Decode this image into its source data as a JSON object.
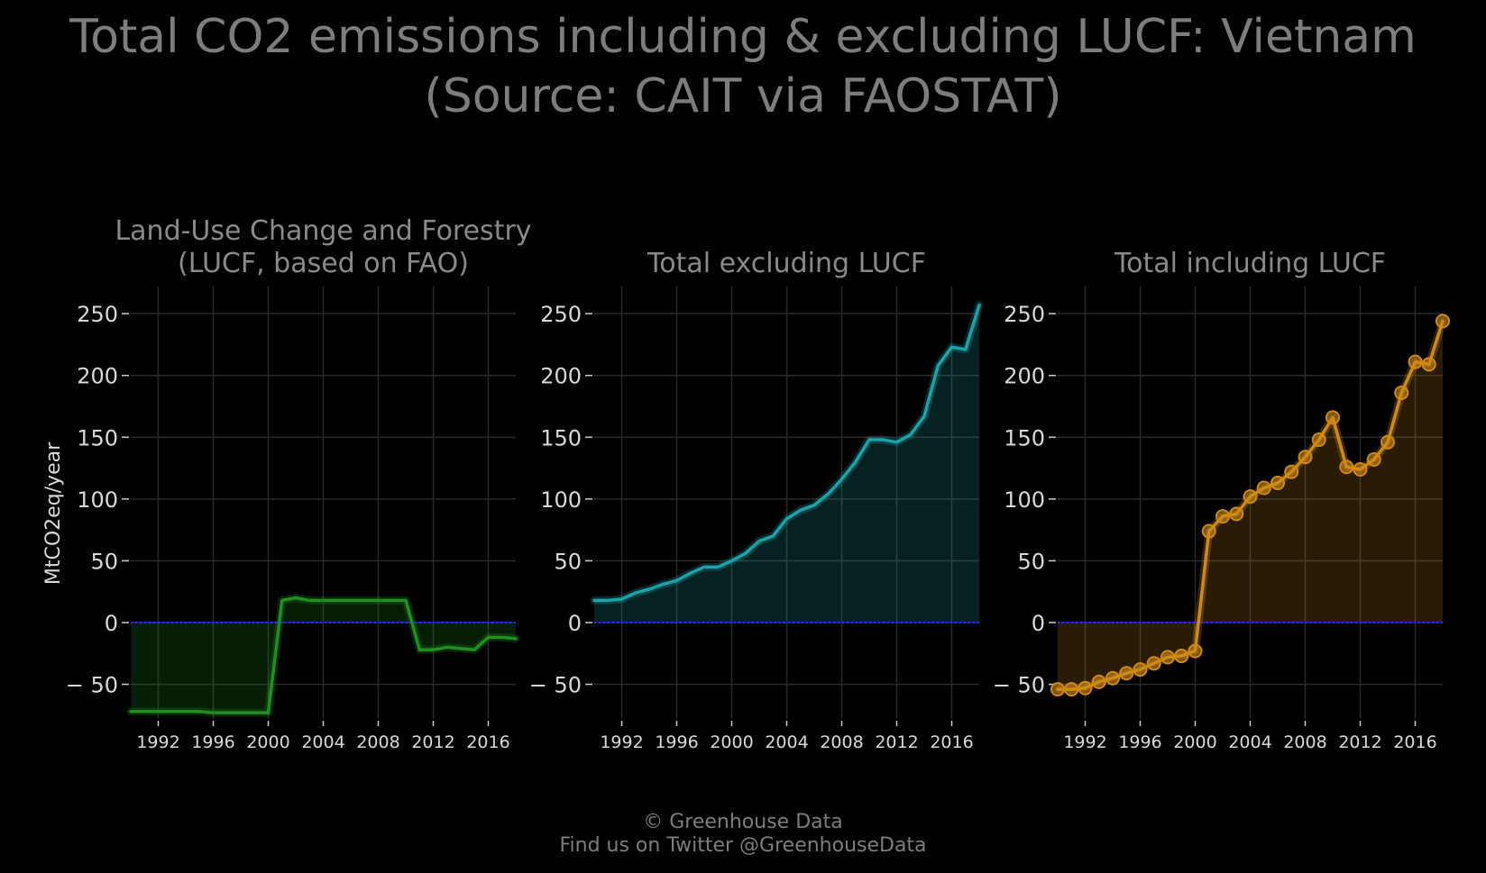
{
  "title": {
    "line1": "Total CO2 emissions including & excluding LUCF: Vietnam",
    "line2": "(Source: CAIT via FAOSTAT)"
  },
  "footer": {
    "line1": "© Greenhouse Data",
    "line2": "Find us on Twitter @GreenhouseData"
  },
  "colors": {
    "background": "#000000",
    "grid": "#2a2a2a",
    "zero_line": "#1a1aa8",
    "text": "#8a8a8a",
    "lucf": "#1f8f1f",
    "excl": "#1aa3a8",
    "incl": "#d08a14"
  },
  "chart_data": [
    {
      "type": "area",
      "title_lines": [
        "Land-Use Change and Forestry",
        "(LUCF, based on FAO)"
      ],
      "ylabel": "MtCO2eq/year",
      "xlim": [
        1990,
        2018
      ],
      "ylim": [
        -78,
        272
      ],
      "xticks": [
        1992,
        1996,
        2000,
        2004,
        2008,
        2012,
        2016
      ],
      "yticks": [
        -50,
        0,
        50,
        100,
        150,
        200,
        250
      ],
      "ytick_labels": [
        "− 50",
        "0",
        "50",
        "100",
        "150",
        "200",
        "250"
      ],
      "markers": false,
      "color_key": "lucf",
      "series": [
        {
          "x": [
            1990,
            1991,
            1992,
            1993,
            1994,
            1995,
            1996,
            1997,
            1998,
            1999,
            2000,
            2001,
            2002,
            2003,
            2004,
            2005,
            2006,
            2007,
            2008,
            2009,
            2010,
            2011,
            2012,
            2013,
            2014,
            2015,
            2016,
            2017,
            2018
          ],
          "values": [
            -72,
            -72,
            -72,
            -72,
            -72,
            -72,
            -73,
            -73,
            -73,
            -73,
            -73,
            18,
            20,
            18,
            18,
            18,
            18,
            18,
            18,
            18,
            18,
            -22,
            -22,
            -20,
            -21,
            -22,
            -12,
            -12,
            -13
          ]
        }
      ]
    },
    {
      "type": "area",
      "title_lines": [
        "Total excluding LUCF"
      ],
      "ylabel": "",
      "xlim": [
        1990,
        2018
      ],
      "ylim": [
        -78,
        272
      ],
      "xticks": [
        1992,
        1996,
        2000,
        2004,
        2008,
        2012,
        2016
      ],
      "yticks": [
        -50,
        0,
        50,
        100,
        150,
        200,
        250
      ],
      "ytick_labels": [
        "− 50",
        "0",
        "50",
        "100",
        "150",
        "200",
        "250"
      ],
      "markers": false,
      "color_key": "excl",
      "series": [
        {
          "x": [
            1990,
            1991,
            1992,
            1993,
            1994,
            1995,
            1996,
            1997,
            1998,
            1999,
            2000,
            2001,
            2002,
            2003,
            2004,
            2005,
            2006,
            2007,
            2008,
            2009,
            2010,
            2011,
            2012,
            2013,
            2014,
            2015,
            2016,
            2017,
            2018
          ],
          "values": [
            18,
            18,
            19,
            24,
            27,
            31,
            34,
            40,
            45,
            45,
            50,
            56,
            66,
            70,
            84,
            91,
            95,
            104,
            116,
            130,
            148,
            148,
            146,
            152,
            167,
            208,
            223,
            221,
            257
          ]
        }
      ]
    },
    {
      "type": "area",
      "title_lines": [
        "Total including LUCF"
      ],
      "ylabel": "",
      "xlim": [
        1990,
        2018
      ],
      "ylim": [
        -78,
        272
      ],
      "xticks": [
        1992,
        1996,
        2000,
        2004,
        2008,
        2012,
        2016
      ],
      "yticks": [
        -50,
        0,
        50,
        100,
        150,
        200,
        250
      ],
      "ytick_labels": [
        "− 50",
        "0",
        "50",
        "100",
        "150",
        "200",
        "250"
      ],
      "markers": true,
      "color_key": "incl",
      "series": [
        {
          "x": [
            1990,
            1991,
            1992,
            1993,
            1994,
            1995,
            1996,
            1997,
            1998,
            1999,
            2000,
            2001,
            2002,
            2003,
            2004,
            2005,
            2006,
            2007,
            2008,
            2009,
            2010,
            2011,
            2012,
            2013,
            2014,
            2015,
            2016,
            2017,
            2018
          ],
          "values": [
            -54,
            -54,
            -53,
            -48,
            -45,
            -41,
            -38,
            -33,
            -28,
            -27,
            -23,
            74,
            86,
            88,
            102,
            109,
            113,
            122,
            134,
            148,
            166,
            126,
            124,
            132,
            146,
            186,
            211,
            209,
            244
          ]
        }
      ]
    }
  ]
}
